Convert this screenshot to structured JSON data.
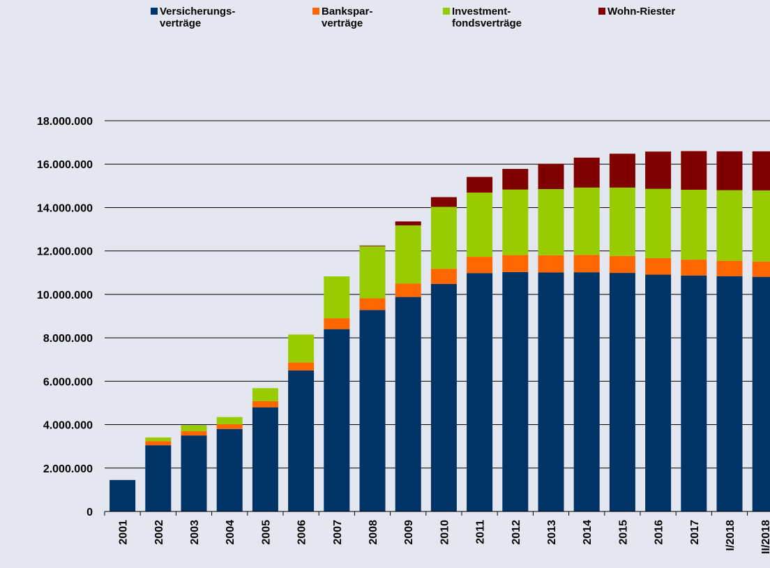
{
  "chart_data": {
    "type": "stacked_bar",
    "categories": [
      "2001",
      "2002",
      "2003",
      "2004",
      "2005",
      "2006",
      "2007",
      "2008",
      "2009",
      "2010",
      "2011",
      "2012",
      "2013",
      "2014",
      "2015",
      "2016",
      "2017",
      "I/2018",
      "II/2018"
    ],
    "series": [
      {
        "name": "Versicherungs-\nverträge",
        "color": "#003366",
        "values": [
          1450000,
          3050000,
          3500000,
          3800000,
          4800000,
          6500000,
          8400000,
          9280000,
          9880000,
          10480000,
          10980000,
          11030000,
          11010000,
          11020000,
          10990000,
          10910000,
          10870000,
          10840000,
          10810000
        ]
      },
      {
        "name": "Bankspar-\nverträge",
        "color": "#ff6600",
        "values": [
          0,
          190000,
          200000,
          220000,
          280000,
          370000,
          500000,
          540000,
          620000,
          700000,
          750000,
          780000,
          790000,
          800000,
          780000,
          760000,
          730000,
          710000,
          700000
        ]
      },
      {
        "name": "Investment-\nfondsverträge",
        "color": "#99cc00",
        "values": [
          0,
          170000,
          280000,
          330000,
          600000,
          1280000,
          1930000,
          2400000,
          2680000,
          2850000,
          2960000,
          3020000,
          3050000,
          3100000,
          3150000,
          3190000,
          3220000,
          3250000,
          3280000
        ]
      },
      {
        "name": "Wohn-Riester",
        "color": "#800000",
        "values": [
          0,
          0,
          0,
          0,
          0,
          0,
          0,
          30000,
          180000,
          450000,
          720000,
          950000,
          1160000,
          1380000,
          1560000,
          1720000,
          1780000,
          1790000,
          1800000
        ]
      }
    ],
    "ylim": [
      0,
      18000000
    ],
    "yticks": [
      0,
      {
        "value": 2000000,
        "label": "2.000.000"
      },
      {
        "value": 4000000,
        "label": "4.000.000"
      },
      {
        "value": 6000000,
        "label": "6.000.000"
      },
      {
        "value": 8000000,
        "label": "8.000.000"
      },
      {
        "value": 10000000,
        "label": "10.000.000"
      },
      {
        "value": 12000000,
        "label": "12.000.000"
      },
      {
        "value": 14000000,
        "label": "14.000.000"
      },
      {
        "value": 16000000,
        "label": "16.000.000"
      },
      {
        "value": 18000000,
        "label": "18.000.000"
      }
    ],
    "grid": true
  }
}
